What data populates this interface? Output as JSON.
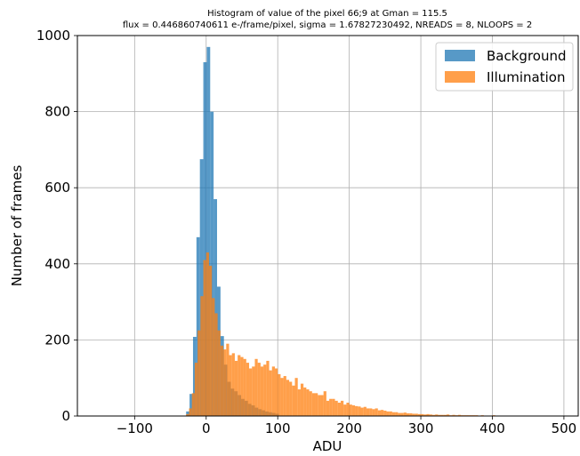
{
  "chart_data": {
    "type": "bar",
    "title_line1": "Histogram of value of the pixel 66;9 at Gman = 115.5",
    "title_line2": "flux = 0.446860740611 e-/frame/pixel, sigma = 1.67827230492, NREADS = 8, NLOOPS = 2",
    "xlabel": "ADU",
    "ylabel": "Number of frames",
    "xlim": [
      -180,
      520
    ],
    "ylim": [
      0,
      1000
    ],
    "xticks": [
      -100,
      0,
      100,
      200,
      300,
      400,
      500
    ],
    "xtick_labels": [
      "−100",
      "0",
      "100",
      "200",
      "300",
      "400",
      "500"
    ],
    "yticks": [
      0,
      200,
      400,
      600,
      800,
      1000
    ],
    "ytick_labels": [
      "0",
      "200",
      "400",
      "600",
      "800",
      "1000"
    ],
    "grid": true,
    "legend_position": "top-right",
    "series": [
      {
        "name": "Background",
        "color": "#1f77b4",
        "bin_edges_x": [
          -28,
          -23.2,
          -18.4,
          -13.6,
          -8.8,
          -4,
          0.8,
          5.6,
          10.4,
          15.2,
          20,
          24.8,
          29.6,
          34.4,
          39.2,
          44,
          48.8,
          53.6,
          58.4,
          63.2,
          68,
          72.8,
          77.6,
          82.4,
          87.2,
          92,
          96.8,
          101.6
        ],
        "values": [
          12,
          58,
          208,
          470,
          675,
          930,
          970,
          800,
          570,
          340,
          210,
          135,
          90,
          72,
          65,
          55,
          45,
          40,
          32,
          28,
          22,
          18,
          15,
          12,
          10,
          8,
          6
        ]
      },
      {
        "name": "Illumination",
        "color": "#ff7f0e",
        "bin_edges_x": [
          -28,
          -24,
          -20,
          -16,
          -12,
          -8,
          -4,
          0,
          4,
          8,
          12,
          16,
          20,
          24,
          28,
          32,
          36,
          40,
          44,
          48,
          52,
          56,
          60,
          64,
          68,
          72,
          76,
          80,
          84,
          88,
          92,
          96,
          100,
          104,
          108,
          112,
          116,
          120,
          124,
          128,
          132,
          136,
          140,
          144,
          148,
          152,
          156,
          160,
          164,
          168,
          172,
          176,
          180,
          184,
          188,
          192,
          196,
          200,
          204,
          208,
          212,
          216,
          220,
          224,
          228,
          232,
          236,
          240,
          244,
          248,
          252,
          256,
          260,
          264,
          268,
          272,
          276,
          280,
          284,
          288,
          292,
          296,
          300,
          304,
          308,
          312,
          316,
          320,
          324,
          328,
          332,
          336,
          340,
          344,
          348,
          352,
          356,
          360,
          364,
          368,
          372,
          376,
          380,
          384,
          388,
          392,
          396,
          400,
          404,
          408,
          412,
          416,
          420,
          424,
          428,
          432,
          436,
          440,
          444,
          448,
          452,
          456,
          460,
          464,
          468,
          472,
          476,
          480,
          484,
          488,
          492,
          496,
          500
        ],
        "values": [
          5,
          20,
          60,
          140,
          225,
          315,
          410,
          430,
          395,
          310,
          270,
          225,
          185,
          175,
          190,
          160,
          165,
          145,
          160,
          155,
          150,
          140,
          125,
          130,
          150,
          140,
          130,
          135,
          145,
          120,
          130,
          125,
          110,
          100,
          105,
          95,
          90,
          80,
          100,
          70,
          85,
          75,
          70,
          65,
          60,
          60,
          55,
          55,
          65,
          40,
          45,
          45,
          40,
          35,
          40,
          30,
          35,
          30,
          28,
          26,
          25,
          22,
          24,
          20,
          20,
          18,
          20,
          15,
          16,
          14,
          12,
          12,
          10,
          10,
          8,
          8,
          9,
          7,
          7,
          6,
          6,
          5,
          5,
          4,
          5,
          4,
          3,
          4,
          3,
          3,
          3,
          4,
          2,
          3,
          2,
          3,
          2,
          2,
          2,
          2,
          2,
          2,
          1,
          2,
          1,
          1,
          1,
          2,
          1,
          1,
          1,
          1,
          1,
          1,
          0,
          1,
          0,
          1,
          0,
          1,
          0,
          0,
          1,
          0,
          0,
          0,
          0,
          0,
          0,
          0,
          0,
          0
        ]
      }
    ]
  }
}
